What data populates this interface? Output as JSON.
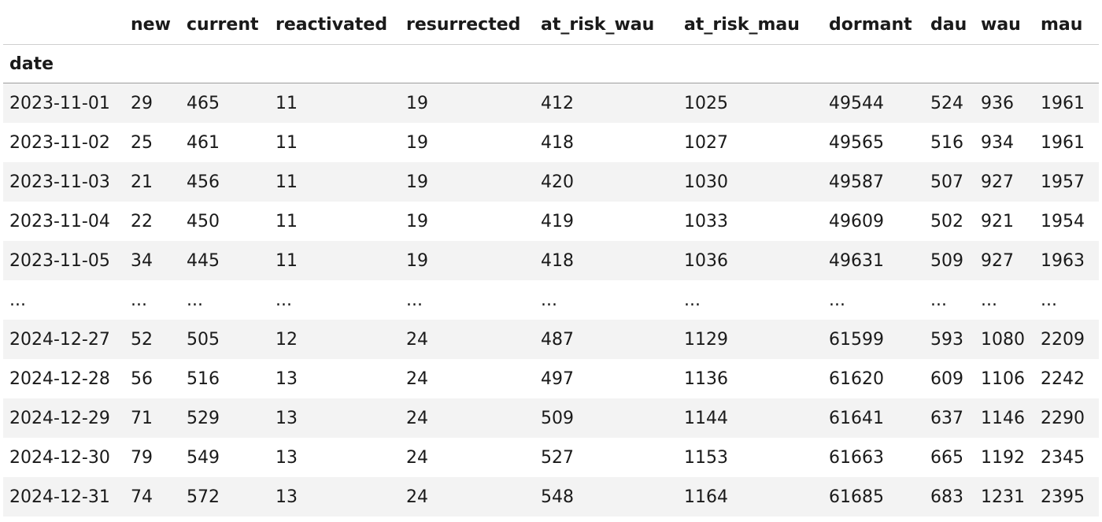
{
  "table": {
    "index_name": "date",
    "columns": [
      "new",
      "current",
      "reactivated",
      "resurrected",
      "at_risk_wau",
      "at_risk_mau",
      "dormant",
      "dau",
      "wau",
      "mau"
    ],
    "rows": [
      [
        "2023-11-01",
        "29",
        "465",
        "11",
        "19",
        "412",
        "1025",
        "49544",
        "524",
        "936",
        "1961"
      ],
      [
        "2023-11-02",
        "25",
        "461",
        "11",
        "19",
        "418",
        "1027",
        "49565",
        "516",
        "934",
        "1961"
      ],
      [
        "2023-11-03",
        "21",
        "456",
        "11",
        "19",
        "420",
        "1030",
        "49587",
        "507",
        "927",
        "1957"
      ],
      [
        "2023-11-04",
        "22",
        "450",
        "11",
        "19",
        "419",
        "1033",
        "49609",
        "502",
        "921",
        "1954"
      ],
      [
        "2023-11-05",
        "34",
        "445",
        "11",
        "19",
        "418",
        "1036",
        "49631",
        "509",
        "927",
        "1963"
      ],
      [
        "...",
        "...",
        "...",
        "...",
        "...",
        "...",
        "...",
        "...",
        "...",
        "...",
        "..."
      ],
      [
        "2024-12-27",
        "52",
        "505",
        "12",
        "24",
        "487",
        "1129",
        "61599",
        "593",
        "1080",
        "2209"
      ],
      [
        "2024-12-28",
        "56",
        "516",
        "13",
        "24",
        "497",
        "1136",
        "61620",
        "609",
        "1106",
        "2242"
      ],
      [
        "2024-12-29",
        "71",
        "529",
        "13",
        "24",
        "509",
        "1144",
        "61641",
        "637",
        "1146",
        "2290"
      ],
      [
        "2024-12-30",
        "79",
        "549",
        "13",
        "24",
        "527",
        "1153",
        "61663",
        "665",
        "1192",
        "2345"
      ],
      [
        "2024-12-31",
        "74",
        "572",
        "13",
        "24",
        "548",
        "1164",
        "61685",
        "683",
        "1231",
        "2395"
      ]
    ]
  }
}
